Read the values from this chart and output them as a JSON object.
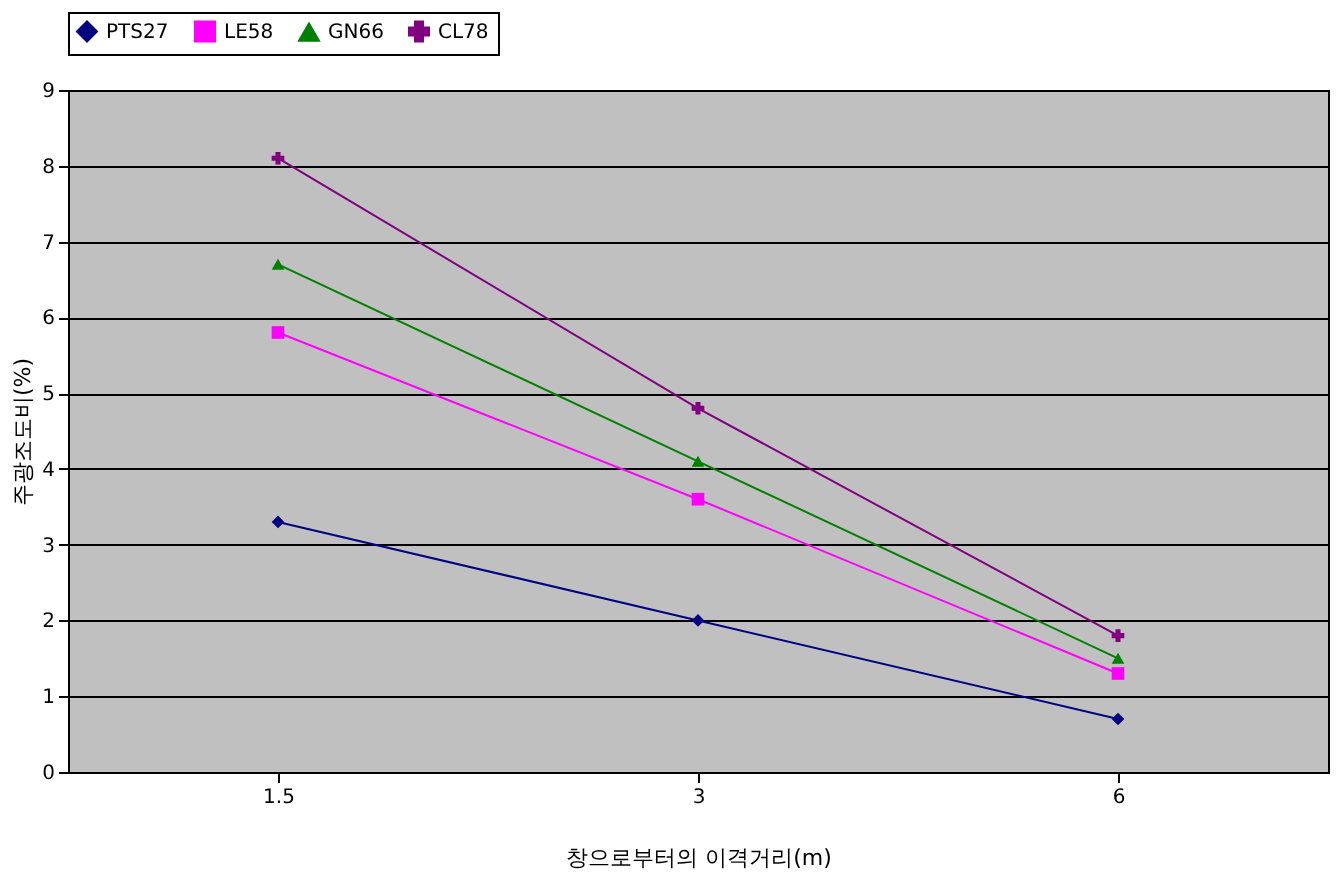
{
  "chart_data": {
    "type": "line",
    "xlabel": "창으로부터의 이격거리(m)",
    "ylabel": "주광조도비(%)",
    "categories": [
      "1.5",
      "3",
      "6"
    ],
    "series": [
      {
        "name": "PTS27",
        "color": "#000080",
        "marker": "diamond",
        "values": [
          3.3,
          2.0,
          0.7
        ]
      },
      {
        "name": "LE58",
        "color": "#ff00ff",
        "marker": "square",
        "values": [
          5.8,
          3.6,
          1.3
        ]
      },
      {
        "name": "GN66",
        "color": "#008000",
        "marker": "triangle",
        "values": [
          6.7,
          4.1,
          1.5
        ]
      },
      {
        "name": "CL78",
        "color": "#800080",
        "marker": "cross",
        "values": [
          8.1,
          4.8,
          1.8
        ]
      }
    ],
    "ylim": [
      0,
      9
    ],
    "yticks": [
      0,
      1,
      2,
      3,
      4,
      5,
      6,
      7,
      8,
      9
    ],
    "grid": "y",
    "legend": "top",
    "line_style": "solid"
  }
}
